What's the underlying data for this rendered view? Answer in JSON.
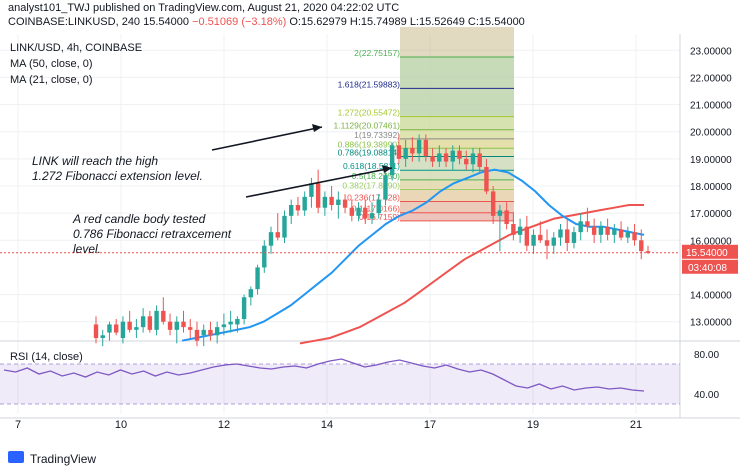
{
  "header": {
    "author_line": "analyst101_TWJ published on TradingView.com, August 21, 2020 04:22:02 UTC",
    "symbol": "COINBASE:LINKUSD, 240",
    "last": "15.54000",
    "change": "−0.51069 (−3.18%)",
    "ohlc": "O:15.62979 H:15.74989 L:15.52649 C:15.54000"
  },
  "chart_title": "LINK/USD, 4h, COINBASE",
  "indicators": [
    "MA (50, close, 0)",
    "MA (21, close, 0)"
  ],
  "rsi_label": "RSI (14, close)",
  "colors": {
    "up": "#26a69a",
    "down": "#ef5350",
    "ma50": "#ef5350",
    "ma21": "#2196f3",
    "rsi": "#7e57c2"
  },
  "annotations": [
    "LINK will reach the high 1.272 Fibonacci extension level.",
    "A red candle body tested 0.786 Fibonacci retraxcement level."
  ],
  "footer": {
    "brand": "TradingView"
  },
  "chart_data": {
    "type": "candlestick",
    "y_axis": {
      "range": [
        12.4,
        23.6
      ],
      "ticks": [
        "23.00000",
        "22.00000",
        "21.00000",
        "20.00000",
        "19.00000",
        "18.00000",
        "17.00000",
        "16.00000",
        "14.00000",
        "13.00000"
      ]
    },
    "x_axis": {
      "ticks": [
        "7",
        "10",
        "12",
        "14",
        "17",
        "19",
        "21"
      ]
    },
    "price_label": "15.54000",
    "countdown": "03:40:08",
    "fibonacci": [
      {
        "label": "2(22.75157)",
        "value": 22.75157
      },
      {
        "label": "1.618(21.59883)",
        "value": 21.59883
      },
      {
        "label": "1.272(20.55472)",
        "value": 20.55472
      },
      {
        "label": "1.1129(20.07461)",
        "value": 20.07461
      },
      {
        "label": "1(19.73392)",
        "value": 19.73392
      },
      {
        "label": "0.886(19.38990)",
        "value": 19.3899
      },
      {
        "label": "0.786(19.08814)",
        "value": 19.08814
      },
      {
        "label": "0.618(18.5811)",
        "value": 18.5811
      },
      {
        "label": "0.5(18.2250)",
        "value": 18.225
      },
      {
        "label": "0.382(17.8690)",
        "value": 17.869
      },
      {
        "label": "0.236(17.428)",
        "value": 17.428
      },
      {
        "label": "0.1(17.0166)",
        "value": 17.0166
      },
      {
        "label": "0(16.7159)",
        "value": 16.7159
      }
    ],
    "candles": [
      {
        "o": 12.9,
        "h": 13.2,
        "l": 12.2,
        "c": 12.4
      },
      {
        "o": 12.4,
        "h": 12.7,
        "l": 12.1,
        "c": 12.5
      },
      {
        "o": 12.6,
        "h": 13.0,
        "l": 12.3,
        "c": 12.9
      },
      {
        "o": 12.9,
        "h": 13.1,
        "l": 12.5,
        "c": 12.6
      },
      {
        "o": 12.4,
        "h": 13.2,
        "l": 12.2,
        "c": 13.0
      },
      {
        "o": 13.0,
        "h": 13.4,
        "l": 12.6,
        "c": 12.7
      },
      {
        "o": 12.7,
        "h": 13.1,
        "l": 12.4,
        "c": 12.8
      },
      {
        "o": 12.8,
        "h": 13.5,
        "l": 12.6,
        "c": 13.2
      },
      {
        "o": 13.2,
        "h": 13.4,
        "l": 12.6,
        "c": 12.7
      },
      {
        "o": 12.7,
        "h": 13.6,
        "l": 12.5,
        "c": 13.4
      },
      {
        "o": 13.4,
        "h": 13.9,
        "l": 12.9,
        "c": 13.0
      },
      {
        "o": 13.0,
        "h": 13.3,
        "l": 12.5,
        "c": 12.7
      },
      {
        "o": 12.7,
        "h": 13.2,
        "l": 12.2,
        "c": 13.0
      },
      {
        "o": 13.0,
        "h": 13.4,
        "l": 12.6,
        "c": 12.8
      },
      {
        "o": 12.8,
        "h": 13.1,
        "l": 12.4,
        "c": 12.7
      },
      {
        "o": 12.7,
        "h": 13.0,
        "l": 12.1,
        "c": 12.3
      },
      {
        "o": 12.5,
        "h": 12.9,
        "l": 12.1,
        "c": 12.7
      },
      {
        "o": 12.7,
        "h": 13.0,
        "l": 12.3,
        "c": 12.5
      },
      {
        "o": 12.5,
        "h": 13.0,
        "l": 12.2,
        "c": 12.8
      },
      {
        "o": 12.8,
        "h": 13.3,
        "l": 12.5,
        "c": 12.9
      },
      {
        "o": 12.9,
        "h": 13.4,
        "l": 12.6,
        "c": 13.0
      },
      {
        "o": 12.9,
        "h": 13.2,
        "l": 12.6,
        "c": 13.1
      },
      {
        "o": 13.1,
        "h": 14.0,
        "l": 12.9,
        "c": 13.9
      },
      {
        "o": 13.9,
        "h": 14.3,
        "l": 13.6,
        "c": 14.2
      },
      {
        "o": 14.2,
        "h": 15.1,
        "l": 14.0,
        "c": 15.0
      },
      {
        "o": 15.0,
        "h": 16.0,
        "l": 14.8,
        "c": 15.8
      },
      {
        "o": 15.8,
        "h": 16.5,
        "l": 15.5,
        "c": 16.3
      },
      {
        "o": 16.3,
        "h": 17.0,
        "l": 16.0,
        "c": 16.1
      },
      {
        "o": 16.1,
        "h": 17.1,
        "l": 15.9,
        "c": 16.9
      },
      {
        "o": 16.9,
        "h": 17.5,
        "l": 16.6,
        "c": 17.3
      },
      {
        "o": 17.3,
        "h": 17.6,
        "l": 16.9,
        "c": 17.1
      },
      {
        "o": 17.1,
        "h": 17.8,
        "l": 16.9,
        "c": 17.6
      },
      {
        "o": 17.6,
        "h": 18.3,
        "l": 17.2,
        "c": 18.1
      },
      {
        "o": 18.1,
        "h": 18.6,
        "l": 17.0,
        "c": 17.2
      },
      {
        "o": 17.2,
        "h": 17.8,
        "l": 16.9,
        "c": 17.6
      },
      {
        "o": 17.6,
        "h": 18.0,
        "l": 17.1,
        "c": 17.3
      },
      {
        "o": 17.3,
        "h": 17.8,
        "l": 16.8,
        "c": 17.5
      },
      {
        "o": 17.5,
        "h": 17.7,
        "l": 17.0,
        "c": 17.2
      },
      {
        "o": 17.2,
        "h": 17.5,
        "l": 16.7,
        "c": 16.9
      },
      {
        "o": 16.9,
        "h": 17.4,
        "l": 16.7,
        "c": 17.2
      },
      {
        "o": 17.2,
        "h": 17.5,
        "l": 16.6,
        "c": 16.8
      },
      {
        "o": 16.8,
        "h": 17.4,
        "l": 16.6,
        "c": 17.0
      },
      {
        "o": 17.0,
        "h": 17.7,
        "l": 16.8,
        "c": 17.5
      },
      {
        "o": 17.5,
        "h": 18.5,
        "l": 17.3,
        "c": 18.4
      },
      {
        "o": 18.4,
        "h": 19.6,
        "l": 18.2,
        "c": 19.5
      },
      {
        "o": 19.5,
        "h": 19.9,
        "l": 18.8,
        "c": 19.0
      },
      {
        "o": 19.0,
        "h": 19.7,
        "l": 18.7,
        "c": 19.4
      },
      {
        "o": 19.4,
        "h": 19.8,
        "l": 18.9,
        "c": 19.2
      },
      {
        "o": 19.2,
        "h": 19.9,
        "l": 18.9,
        "c": 19.7
      },
      {
        "o": 19.7,
        "h": 19.9,
        "l": 18.9,
        "c": 19.1
      },
      {
        "o": 19.1,
        "h": 19.4,
        "l": 18.7,
        "c": 18.9
      },
      {
        "o": 18.9,
        "h": 19.5,
        "l": 18.7,
        "c": 19.2
      },
      {
        "o": 19.2,
        "h": 19.4,
        "l": 18.7,
        "c": 18.9
      },
      {
        "o": 18.9,
        "h": 19.5,
        "l": 18.6,
        "c": 19.3
      },
      {
        "o": 19.3,
        "h": 19.5,
        "l": 18.8,
        "c": 19.0
      },
      {
        "o": 19.0,
        "h": 19.3,
        "l": 18.6,
        "c": 18.8
      },
      {
        "o": 18.8,
        "h": 19.4,
        "l": 18.5,
        "c": 19.2
      },
      {
        "o": 19.2,
        "h": 19.4,
        "l": 18.5,
        "c": 18.7
      },
      {
        "o": 18.7,
        "h": 19.0,
        "l": 17.7,
        "c": 17.8
      },
      {
        "o": 17.8,
        "h": 18.0,
        "l": 16.6,
        "c": 16.9
      },
      {
        "o": 16.9,
        "h": 17.3,
        "l": 15.6,
        "c": 17.1
      },
      {
        "o": 17.1,
        "h": 17.4,
        "l": 16.4,
        "c": 16.6
      },
      {
        "o": 16.6,
        "h": 17.0,
        "l": 16.0,
        "c": 16.2
      },
      {
        "o": 16.2,
        "h": 16.8,
        "l": 15.9,
        "c": 16.5
      },
      {
        "o": 16.5,
        "h": 16.9,
        "l": 15.6,
        "c": 15.8
      },
      {
        "o": 15.8,
        "h": 16.4,
        "l": 15.5,
        "c": 16.2
      },
      {
        "o": 16.2,
        "h": 16.7,
        "l": 15.9,
        "c": 16.0
      },
      {
        "o": 16.0,
        "h": 16.4,
        "l": 15.3,
        "c": 15.8
      },
      {
        "o": 15.8,
        "h": 16.3,
        "l": 15.5,
        "c": 16.1
      },
      {
        "o": 16.1,
        "h": 16.6,
        "l": 15.8,
        "c": 16.4
      },
      {
        "o": 16.4,
        "h": 16.8,
        "l": 15.6,
        "c": 15.9
      },
      {
        "o": 15.9,
        "h": 16.5,
        "l": 15.7,
        "c": 16.3
      },
      {
        "o": 16.3,
        "h": 17.0,
        "l": 16.0,
        "c": 16.7
      },
      {
        "o": 16.7,
        "h": 17.2,
        "l": 16.3,
        "c": 16.5
      },
      {
        "o": 16.5,
        "h": 16.8,
        "l": 15.9,
        "c": 16.2
      },
      {
        "o": 16.2,
        "h": 16.7,
        "l": 15.9,
        "c": 16.5
      },
      {
        "o": 16.5,
        "h": 16.8,
        "l": 16.0,
        "c": 16.2
      },
      {
        "o": 16.2,
        "h": 16.6,
        "l": 15.9,
        "c": 16.4
      },
      {
        "o": 16.4,
        "h": 16.7,
        "l": 16.0,
        "c": 16.1
      },
      {
        "o": 16.1,
        "h": 16.5,
        "l": 15.9,
        "c": 16.3
      },
      {
        "o": 16.3,
        "h": 16.6,
        "l": 15.8,
        "c": 16.0
      },
      {
        "o": 16.0,
        "h": 16.4,
        "l": 15.3,
        "c": 15.6
      },
      {
        "o": 15.6,
        "h": 15.8,
        "l": 15.5,
        "c": 15.54
      }
    ],
    "ma21": [
      12.3,
      12.4,
      12.5,
      12.6,
      12.7,
      12.8,
      13.0,
      13.3,
      13.6,
      14.0,
      14.4,
      14.8,
      15.3,
      15.8,
      16.2,
      16.6,
      16.9,
      17.1,
      17.4,
      17.8,
      18.1,
      18.3,
      18.5,
      18.6,
      18.5,
      18.2,
      17.8,
      17.3,
      16.9,
      16.6,
      16.5,
      16.5,
      16.4,
      16.3,
      16.2
    ],
    "ma50": [
      12.2,
      12.3,
      12.4,
      12.6,
      12.8,
      13.1,
      13.4,
      13.7,
      14.1,
      14.5,
      14.9,
      15.3,
      15.6,
      15.9,
      16.2,
      16.4,
      16.6,
      16.8,
      16.9,
      17.0,
      17.1,
      17.2,
      17.3,
      17.3
    ],
    "rsi": {
      "range": [
        20,
        90
      ],
      "ticks": [
        "80.00",
        "40.00"
      ],
      "band": [
        30,
        70
      ],
      "values": [
        64,
        62,
        66,
        60,
        63,
        58,
        61,
        57,
        62,
        59,
        64,
        60,
        63,
        58,
        62,
        59,
        61,
        64,
        67,
        69,
        70,
        68,
        66,
        65,
        67,
        68,
        66,
        70,
        73,
        75,
        71,
        67,
        69,
        72,
        74,
        71,
        68,
        66,
        69,
        65,
        62,
        64,
        60,
        54,
        48,
        46,
        50,
        45,
        48,
        44,
        46,
        47,
        45,
        46,
        44,
        43
      ]
    }
  }
}
